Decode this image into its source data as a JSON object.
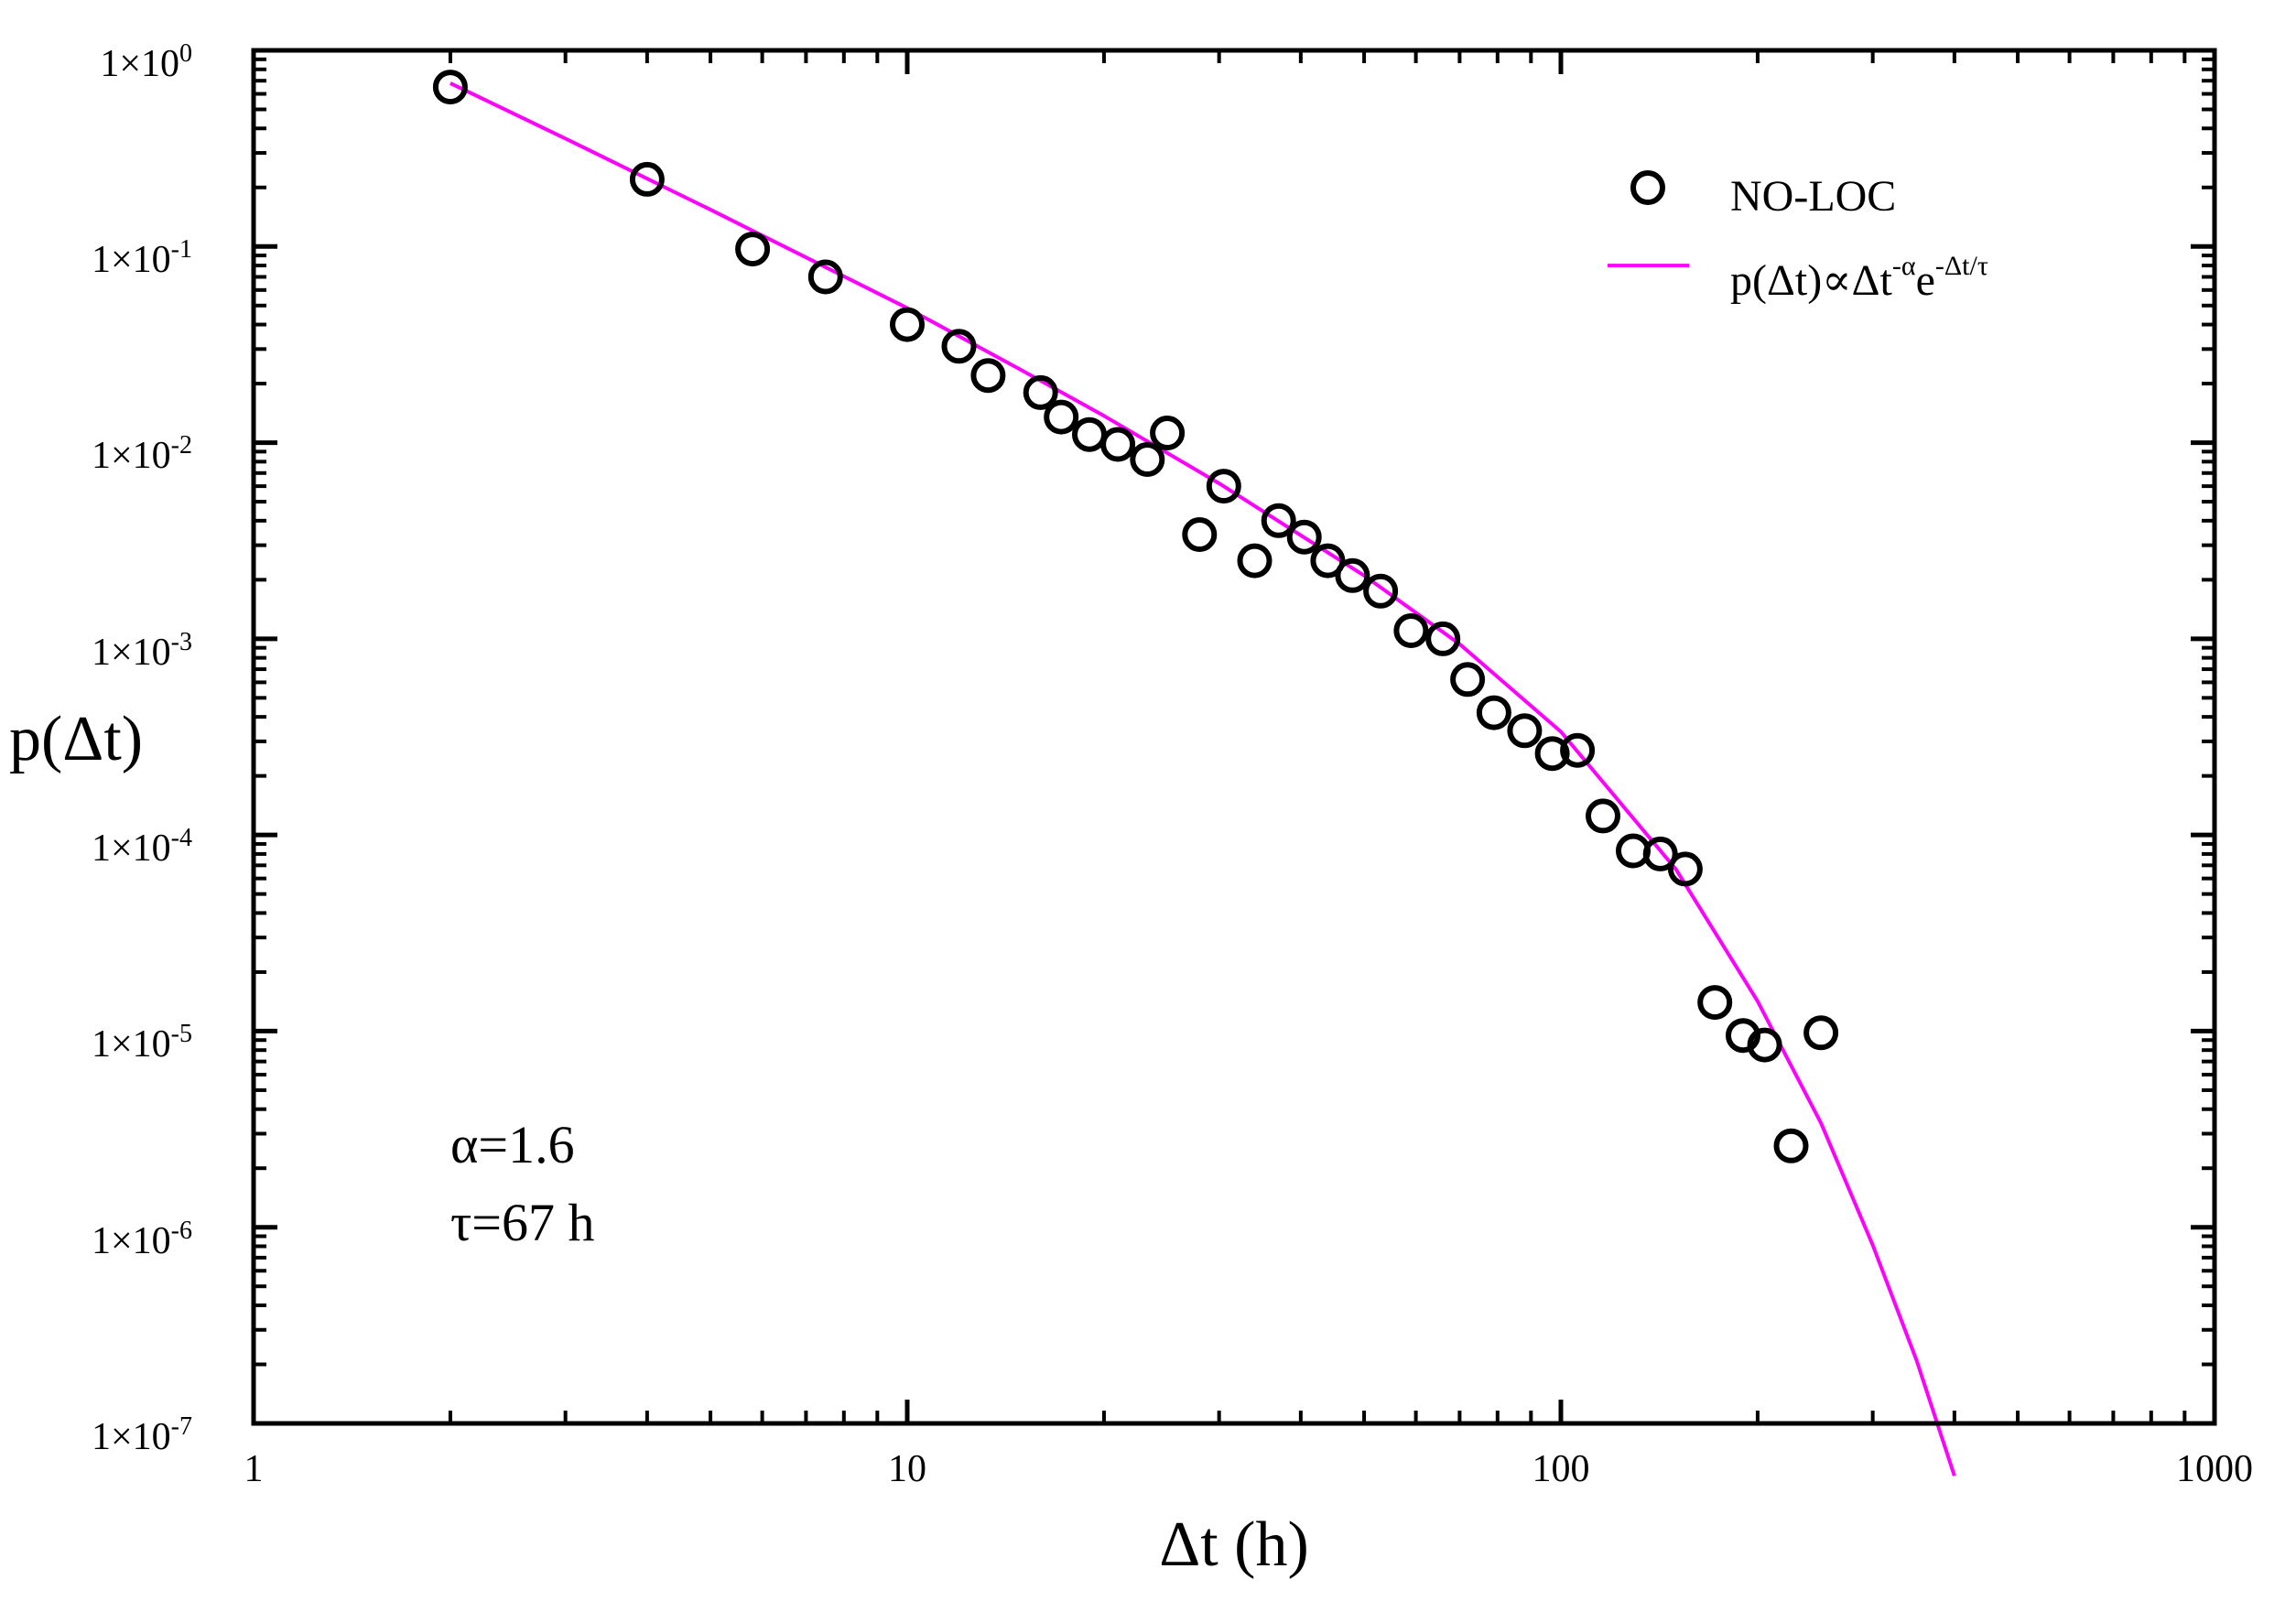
{
  "chart_data": {
    "type": "scatter",
    "title": "",
    "xlabel": "Δt (h)",
    "ylabel": "p(Δt)",
    "xscale": "log",
    "yscale": "log",
    "xlim": [
      1,
      1000
    ],
    "ylim": [
      1e-07,
      1
    ],
    "x_tick_labels": [
      "1",
      "10",
      "100",
      "1000"
    ],
    "y_tick_labels": [
      {
        "mantissa": "1×10",
        "exponent": "0"
      },
      {
        "mantissa": "1×10",
        "exponent": "-1"
      },
      {
        "mantissa": "1×10",
        "exponent": "-2"
      },
      {
        "mantissa": "1×10",
        "exponent": "-3"
      },
      {
        "mantissa": "1×10",
        "exponent": "-4"
      },
      {
        "mantissa": "1×10",
        "exponent": "-5"
      },
      {
        "mantissa": "1×10",
        "exponent": "-6"
      },
      {
        "mantissa": "1×10",
        "exponent": "-7"
      }
    ],
    "grid": false,
    "legend_position": "top-right",
    "series": [
      {
        "name": "NO-LOC",
        "type": "scatter",
        "marker": "open-circle",
        "color": "#000000",
        "x": [
          2,
          4,
          5.8,
          7.5,
          10,
          12,
          13.3,
          16,
          17.2,
          19,
          21,
          23.3,
          25,
          28,
          30.5,
          34,
          37,
          40.5,
          44,
          48,
          53,
          59,
          66,
          72,
          79,
          88,
          97,
          106,
          116,
          129,
          142,
          155,
          172,
          190,
          205,
          225,
          250
        ],
        "y": [
          0.65,
          0.22,
          0.097,
          0.07,
          0.04,
          0.031,
          0.022,
          0.018,
          0.0135,
          0.011,
          0.0098,
          0.0082,
          0.0112,
          0.0034,
          0.006,
          0.0025,
          0.004,
          0.0033,
          0.0025,
          0.0021,
          0.00175,
          0.0011,
          0.001,
          0.00062,
          0.00042,
          0.00034,
          0.00026,
          0.00027,
          0.000125,
          8.3e-05,
          8e-05,
          6.7e-05,
          1.4e-05,
          9.5e-06,
          8.5e-06,
          2.6e-06,
          9.8e-06
        ]
      },
      {
        "name": "p(Δt)∝Δt-αe-Δt/τ",
        "type": "line",
        "color": "#ff00ff",
        "model": "power-law with exponential cutoff",
        "x": [
          2,
          3,
          5,
          7,
          10,
          15,
          20,
          30,
          50,
          70,
          100,
          150,
          200,
          250,
          300,
          350,
          400
        ],
        "y": [
          0.68,
          0.355,
          0.154,
          0.088,
          0.0485,
          0.0233,
          0.0137,
          0.0062,
          0.0021,
          0.00094,
          0.000336,
          6.68e-05,
          1.42e-05,
          3.4e-06,
          8.1e-07,
          2.1e-07,
          5.4e-08
        ]
      }
    ],
    "legend": {
      "entries": [
        {
          "label": "NO-LOC",
          "marker": "open-circle"
        },
        {
          "label_base": "p(Δt)∝Δt",
          "label_sup1": "-α",
          "label_mid": "e",
          "label_sup2": "-Δt/τ",
          "marker": "line"
        }
      ]
    },
    "annotations": {
      "alpha": "α=1.6",
      "tau": "τ=67 h"
    },
    "colors": {
      "fit_line": "#ff00ff",
      "points": "#000000",
      "axes": "#000000"
    }
  }
}
